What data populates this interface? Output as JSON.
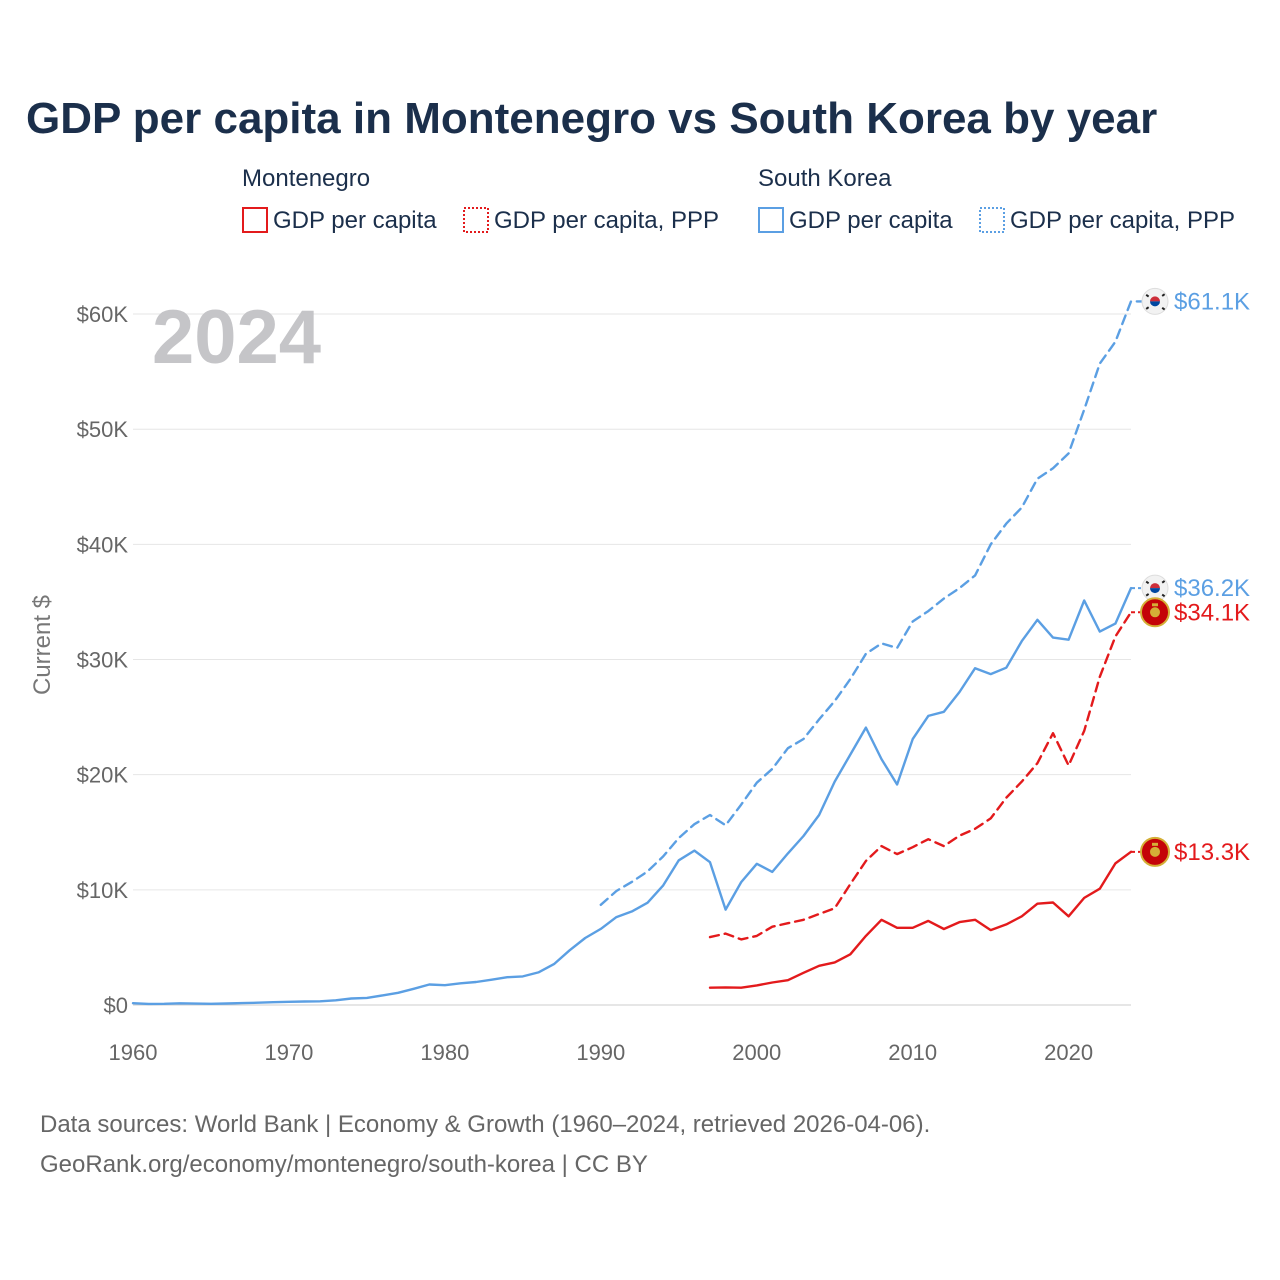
{
  "header": {
    "title": "GDP per capita in Montenegro vs South Korea by year"
  },
  "legend": {
    "groups": [
      {
        "name": "Montenegro",
        "color": "#e31a1c",
        "entries": [
          "GDP per capita",
          "GDP per capita, PPP"
        ]
      },
      {
        "name": "South Korea",
        "color": "#5b9fe3",
        "entries": [
          "GDP per capita",
          "GDP per capita, PPP"
        ]
      }
    ]
  },
  "current_year": "2024",
  "footer": {
    "line1": "Data sources: World Bank | Economy & Growth (1960–2024, retrieved 2026-04-06).",
    "line2": "GeoRank.org/economy/montenegro/south-korea | CC BY"
  },
  "end_labels": {
    "kor_ppp": "$61.1K",
    "kor_gdp": "$36.2K",
    "mne_ppp": "$34.1K",
    "mne_gdp": "$13.3K"
  },
  "colors": {
    "montenegro": "#e31a1c",
    "south_korea": "#5b9fe3",
    "grid": "#e6e6e6",
    "title": "#1b2f4b"
  },
  "chart_data": {
    "type": "line",
    "title": "GDP per capita in Montenegro vs South Korea by year",
    "xlabel": "",
    "ylabel": "Current $",
    "xlim": [
      1960,
      2024
    ],
    "ylim": [
      0,
      62000
    ],
    "x_ticks": [
      1960,
      1970,
      1980,
      1990,
      2000,
      2010,
      2020
    ],
    "y_ticks": [
      0,
      10000,
      20000,
      30000,
      40000,
      50000,
      60000
    ],
    "y_tick_labels": [
      "$0",
      "$10K",
      "$20K",
      "$30K",
      "$40K",
      "$50K",
      "$60K"
    ],
    "grid": true,
    "series": [
      {
        "name": "South Korea GDP per capita",
        "key": "kor_gdp",
        "style": "solid",
        "color": "#5b9fe3",
        "start_year": 1960,
        "values": [
          158,
          94,
          106,
          146,
          124,
          108,
          128,
          161,
          198,
          243,
          279,
          301,
          323,
          407,
          563,
          617,
          834,
          1056,
          1406,
          1783,
          1715,
          1883,
          1993,
          2199,
          2413,
          2483,
          2835,
          3555,
          4749,
          5817,
          6610,
          7637,
          8127,
          8885,
          10385,
          12565,
          13404,
          12398,
          8283,
          10672,
          12257,
          11561,
          13165,
          14673,
          16496,
          19402,
          21743,
          24086,
          21350,
          19144,
          23087,
          25100,
          25459,
          27180,
          29250,
          28737,
          29289,
          31601,
          33447,
          31902,
          31721,
          35126,
          32423,
          33121,
          36200
        ]
      },
      {
        "name": "South Korea GDP per capita, PPP",
        "key": "kor_ppp",
        "style": "dashed",
        "color": "#5b9fe3",
        "start_year": 1990,
        "values": [
          8700,
          9900,
          10700,
          11600,
          12900,
          14500,
          15700,
          16500,
          15600,
          17400,
          19300,
          20500,
          22300,
          23100,
          24800,
          26400,
          28300,
          30500,
          31400,
          31000,
          33300,
          34200,
          35300,
          36200,
          37300,
          40000,
          41800,
          43200,
          45700,
          46600,
          47900,
          51700,
          55700,
          57600,
          61100,
          61100
        ]
      },
      {
        "name": "Montenegro GDP per capita",
        "key": "mne_gdp",
        "style": "solid",
        "color": "#e31a1c",
        "start_year": 1997,
        "values": [
          1500,
          1530,
          1500,
          1700,
          1950,
          2150,
          2800,
          3400,
          3700,
          4400,
          6000,
          7400,
          6700,
          6700,
          7300,
          6600,
          7200,
          7400,
          6500,
          7000,
          7700,
          8800,
          8900,
          7700,
          9300,
          10100,
          12300,
          13300
        ]
      },
      {
        "name": "Montenegro GDP per capita, PPP",
        "key": "mne_ppp",
        "style": "dashed",
        "color": "#e31a1c",
        "start_year": 1997,
        "values": [
          5900,
          6200,
          5700,
          6000,
          6800,
          7100,
          7400,
          7900,
          8400,
          10500,
          12500,
          13800,
          13100,
          13700,
          14400,
          13800,
          14700,
          15300,
          16200,
          18000,
          19400,
          21000,
          23600,
          20800,
          23800,
          28500,
          32000,
          34100
        ]
      }
    ]
  }
}
